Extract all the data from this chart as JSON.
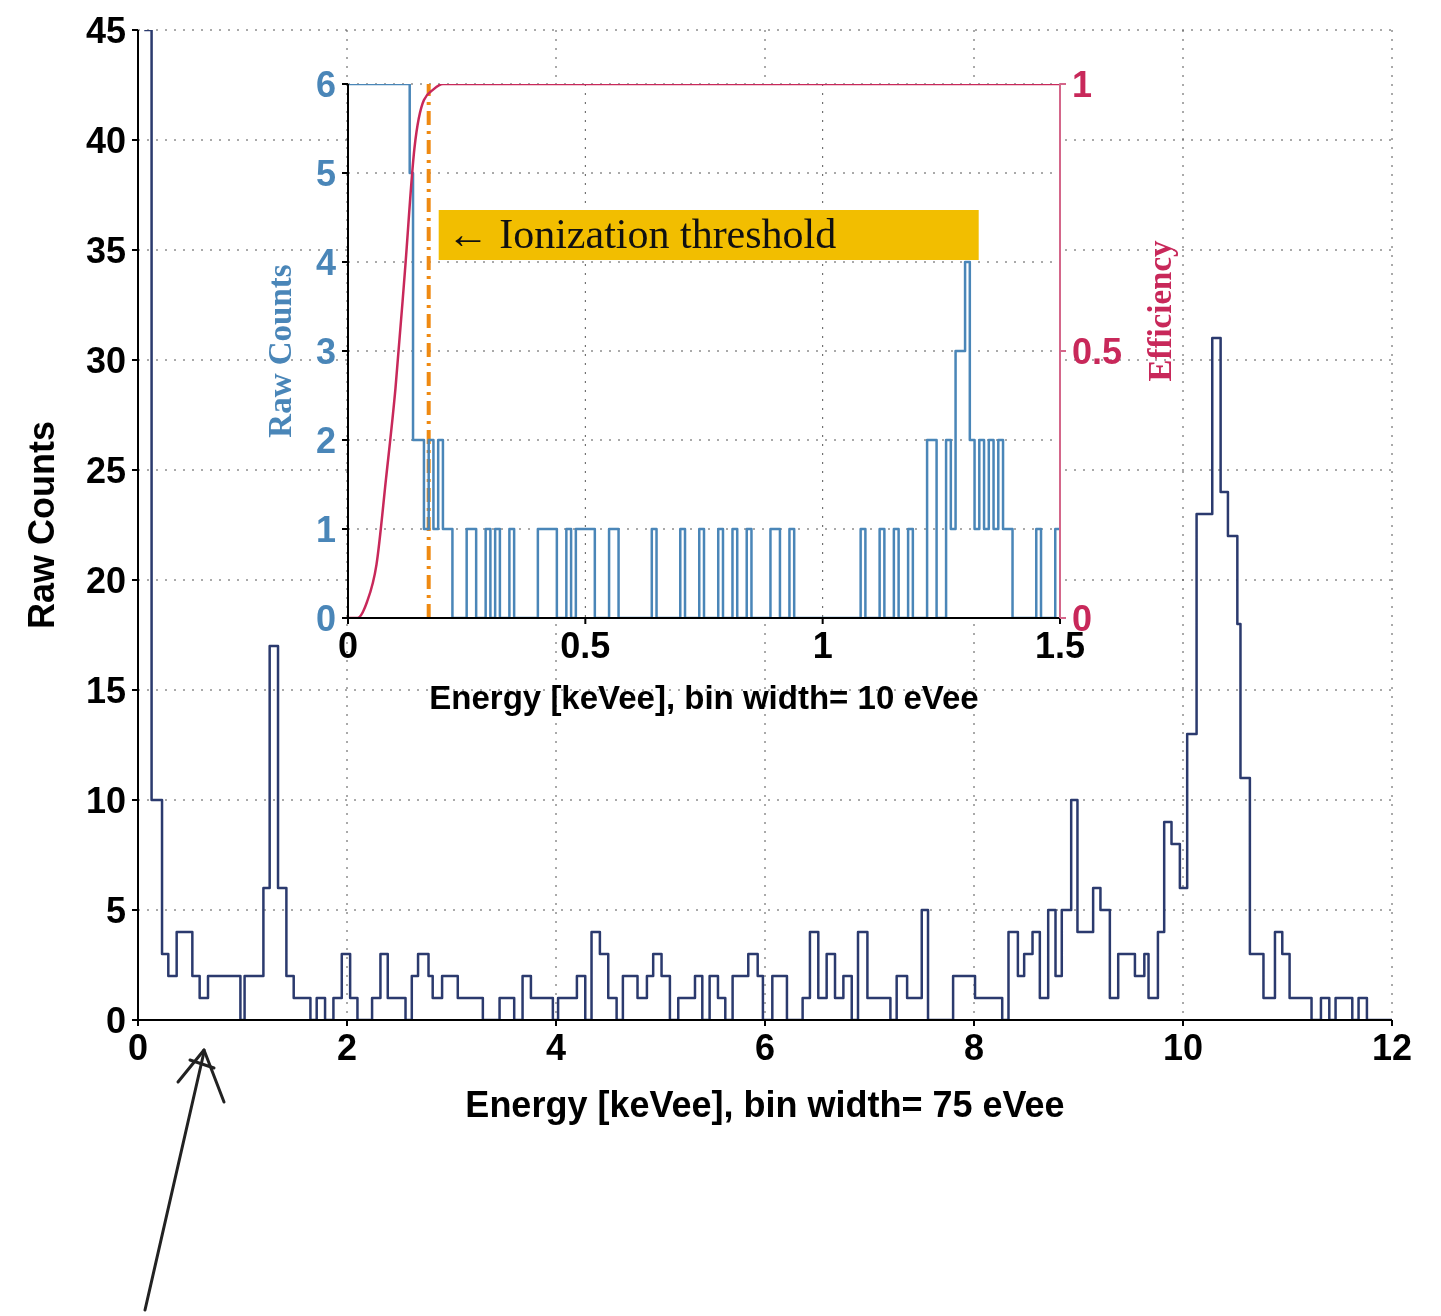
{
  "chart_data": [
    {
      "type": "step",
      "xlabel": "Energy [keVee], bin width= 75 eVee",
      "ylabel": "Raw Counts",
      "xlim": [
        0,
        12
      ],
      "xticks": [
        0,
        2,
        4,
        6,
        8,
        10,
        12
      ],
      "ylim": [
        0,
        45
      ],
      "yticks": [
        0,
        5,
        10,
        15,
        20,
        25,
        30,
        35,
        40,
        45
      ],
      "grid": true,
      "series": [
        {
          "color": "#2b3a6e",
          "x": [
            0.06,
            0.13,
            0.23,
            0.29,
            0.37,
            0.52,
            0.59,
            0.67,
            0.98,
            1.02,
            1.2,
            1.26,
            1.34,
            1.42,
            1.49,
            1.65,
            1.71,
            1.79,
            1.87,
            1.95,
            2.03,
            2.1,
            2.24,
            2.32,
            2.39,
            2.56,
            2.62,
            2.68,
            2.78,
            2.82,
            2.91,
            3.06,
            3.3,
            3.46,
            3.6,
            3.68,
            3.76,
            3.97,
            4.02,
            4.2,
            4.28,
            4.34,
            4.42,
            4.5,
            4.58,
            4.64,
            4.78,
            4.87,
            4.93,
            5.01,
            5.09,
            5.17,
            5.33,
            5.4,
            5.47,
            5.55,
            5.62,
            5.69,
            5.84,
            5.93,
            5.98,
            6.07,
            6.21,
            6.36,
            6.43,
            6.51,
            6.59,
            6.67,
            6.75,
            6.83,
            6.89,
            6.98,
            7.2,
            7.26,
            7.36,
            7.5,
            7.56,
            7.8,
            8.01,
            8.27,
            8.33,
            8.42,
            8.48,
            8.56,
            8.63,
            8.71,
            8.78,
            8.84,
            8.93,
            8.99,
            9.14,
            9.21,
            9.3,
            9.38,
            9.54,
            9.63,
            9.67,
            9.76,
            9.82,
            9.89,
            9.97,
            10.04,
            10.13,
            10.28,
            10.36,
            10.43,
            10.52,
            10.55,
            10.64,
            10.77,
            10.88,
            10.95,
            11.02,
            11.23,
            11.32,
            11.4,
            11.46,
            11.62,
            11.68,
            11.76,
            12
          ],
          "values": [
            45,
            10,
            3,
            2,
            4,
            2,
            1,
            2,
            0,
            2,
            6,
            17,
            6,
            2,
            1,
            0,
            1,
            0,
            1,
            3,
            1,
            0,
            1,
            3,
            1,
            0,
            2,
            3,
            2,
            1,
            2,
            1,
            0,
            1,
            0,
            2,
            1,
            0,
            1,
            2,
            0,
            4,
            3,
            1,
            0,
            2,
            1,
            2,
            3,
            2,
            0,
            1,
            2,
            0,
            2,
            1,
            0,
            2,
            3,
            2,
            0,
            2,
            0,
            1,
            4,
            1,
            3,
            1,
            2,
            0,
            4,
            1,
            0,
            2,
            1,
            5,
            0,
            2,
            1,
            0,
            4,
            2,
            3,
            4,
            1,
            5,
            2,
            5,
            10,
            4,
            6,
            5,
            1,
            3,
            2,
            3,
            1,
            4,
            9,
            8,
            6,
            13,
            23,
            31,
            24,
            22,
            18,
            11,
            3,
            1,
            4,
            3,
            1,
            0,
            1,
            0,
            1,
            0,
            1,
            0,
            0
          ]
        }
      ]
    },
    {
      "type": "step",
      "xlabel": "Energy [keVee], bin width= 10 eVee",
      "ylabel": "Raw Counts",
      "y2label": "Efficiency",
      "xlim": [
        0,
        1.5
      ],
      "xticks": [
        0,
        0.5,
        1,
        1.5
      ],
      "ylim": [
        0,
        6
      ],
      "yticks": [
        0,
        1,
        2,
        3,
        4,
        5,
        6
      ],
      "y2lim": [
        0,
        1
      ],
      "y2ticks": [
        0,
        0.5,
        1
      ],
      "grid": true,
      "ref_lines": [
        {
          "axis": "x",
          "value": 0.17,
          "label": "← Ionization threshold",
          "color": "#ef8a12",
          "line_style": "dashed"
        }
      ],
      "series": [
        {
          "color": "#4a86b8",
          "x": [
            0,
            0.13,
            0.137,
            0.16,
            0.17,
            0.18,
            0.19,
            0.2,
            0.22,
            0.25,
            0.27,
            0.29,
            0.3,
            0.31,
            0.32,
            0.34,
            0.35,
            0.4,
            0.44,
            0.46,
            0.47,
            0.48,
            0.52,
            0.55,
            0.57,
            0.64,
            0.65,
            0.7,
            0.71,
            0.74,
            0.75,
            0.78,
            0.79,
            0.81,
            0.82,
            0.84,
            0.85,
            0.89,
            0.91,
            0.93,
            0.94,
            1.08,
            1.09,
            1.12,
            1.13,
            1.15,
            1.16,
            1.18,
            1.19,
            1.22,
            1.24,
            1.26,
            1.27,
            1.28,
            1.3,
            1.31,
            1.32,
            1.33,
            1.34,
            1.35,
            1.36,
            1.37,
            1.38,
            1.4,
            1.45,
            1.46,
            1.49,
            1.5
          ],
          "values": [
            6,
            5,
            2,
            1,
            2,
            1,
            2,
            1,
            0,
            1,
            0,
            1,
            0,
            1,
            0,
            1,
            0,
            1,
            0,
            1,
            0,
            1,
            0,
            1,
            0,
            1,
            0,
            1,
            0,
            1,
            0,
            1,
            0,
            1,
            0,
            1,
            0,
            1,
            0,
            1,
            0,
            1,
            0,
            1,
            0,
            1,
            0,
            1,
            0,
            2,
            0,
            2,
            1,
            3,
            4,
            2,
            1,
            2,
            1,
            2,
            1,
            2,
            1,
            0,
            1,
            0,
            1,
            1
          ]
        },
        {
          "type": "line",
          "axis": "y2",
          "color": "#c8285a",
          "x": [
            0,
            0.02,
            0.04,
            0.06,
            0.08,
            0.1,
            0.12,
            0.14,
            0.16,
            0.18,
            0.2,
            1.5
          ],
          "values": [
            0,
            0,
            0.03,
            0.1,
            0.26,
            0.43,
            0.65,
            0.88,
            0.97,
            0.99,
            1,
            1
          ]
        }
      ]
    }
  ]
}
